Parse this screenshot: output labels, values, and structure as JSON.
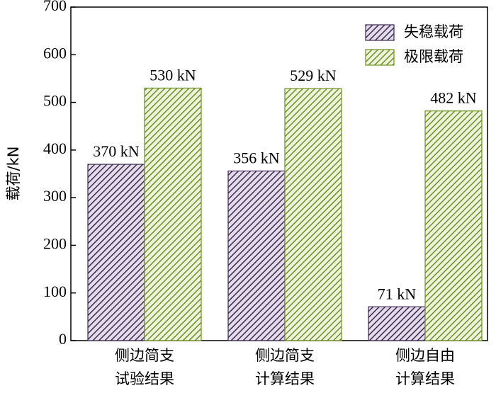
{
  "chart_data": {
    "type": "bar",
    "y_label": "载荷/kN",
    "categories": [
      [
        "侧边简支",
        "试验结果"
      ],
      [
        "侧边简支",
        "计算结果"
      ],
      [
        "侧边自由",
        "计算结果"
      ]
    ],
    "series": [
      {
        "name": "失稳载荷",
        "color": "#3b2a4f",
        "values": [
          370,
          356,
          71
        ],
        "value_labels": [
          "370 kN",
          "356 kN",
          "71 kN"
        ]
      },
      {
        "name": "极限载荷",
        "color": "#6f8f22",
        "values": [
          530,
          529,
          482
        ],
        "value_labels": [
          "530 kN",
          "529 kN",
          "482 kN"
        ]
      }
    ],
    "ylim": [
      0,
      700
    ],
    "yticks": [
      0,
      100,
      200,
      300,
      400,
      500,
      600,
      700
    ]
  }
}
